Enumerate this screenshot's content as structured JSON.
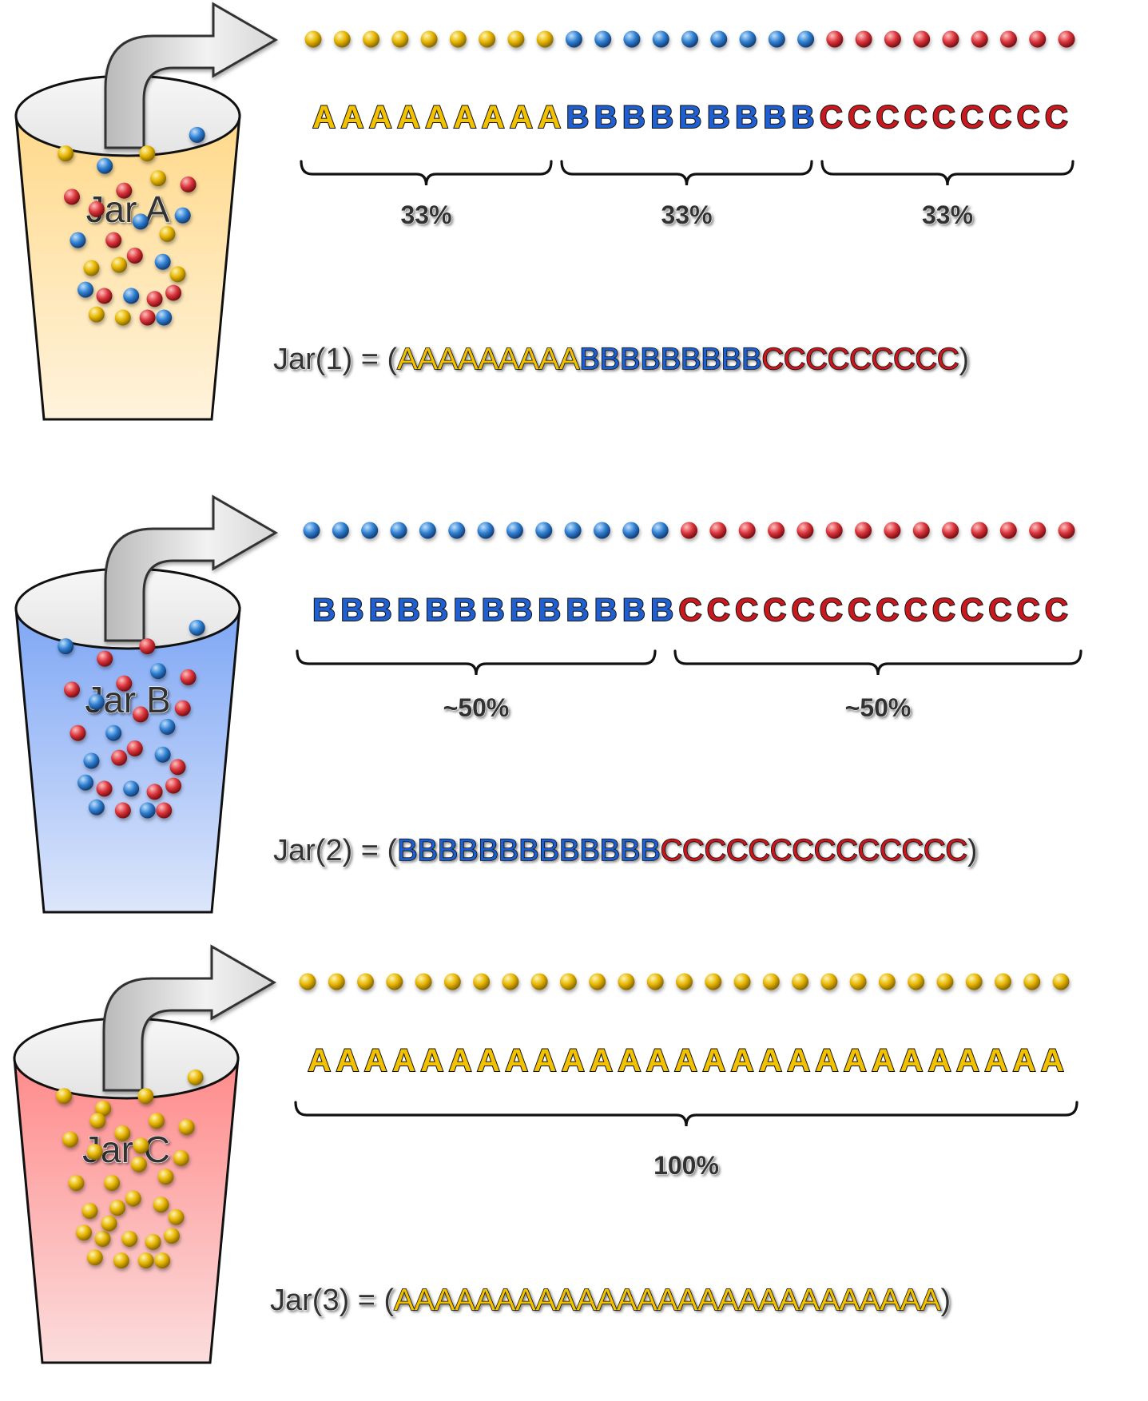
{
  "colors": {
    "A": "#F2C200",
    "B": "#1F5FD0",
    "C": "#C8191E",
    "jar_A_fill": "#FFD98A",
    "jar_B_fill": "#7EA6F5",
    "jar_C_fill": "#FF8A8A",
    "outline": "#111111",
    "label_text": "#333333"
  },
  "panels": [
    {
      "jar_label": "Jar A",
      "jar_color_key": "jar_A_fill",
      "jar_balls": "mixed-ABC",
      "beads": [
        {
          "letter": "A",
          "count": 9
        },
        {
          "letter": "B",
          "count": 9
        },
        {
          "letter": "C",
          "count": 9
        }
      ],
      "segments": [
        {
          "label": "33%",
          "letters": 9
        },
        {
          "label": "33%",
          "letters": 9
        },
        {
          "label": "33%",
          "letters": 9
        }
      ],
      "formula_prefix": "Jar(1) = (",
      "formula_parts": [
        {
          "letter": "A",
          "text": "AAAAAAAAA"
        },
        {
          "letter": "B",
          "text": "BBBBBBBBB"
        },
        {
          "letter": "C",
          "text": "CCCCCCCCC"
        }
      ],
      "formula_suffix": ")"
    },
    {
      "jar_label": "Jar B",
      "jar_color_key": "jar_B_fill",
      "jar_balls": "mixed-BC",
      "beads": [
        {
          "letter": "B",
          "count": 13
        },
        {
          "letter": "C",
          "count": 14
        }
      ],
      "segments": [
        {
          "label": "~50%",
          "letters": 13
        },
        {
          "label": "~50%",
          "letters": 14
        }
      ],
      "formula_prefix": "Jar(2) = (",
      "formula_parts": [
        {
          "letter": "B",
          "text": "BBBBBBBBBBBBB"
        },
        {
          "letter": "C",
          "text": "CCCCCCCCCCCCCC"
        }
      ],
      "formula_suffix": ")"
    },
    {
      "jar_label": "Jar C",
      "jar_color_key": "jar_C_fill",
      "jar_balls": "only-A",
      "beads": [
        {
          "letter": "A",
          "count": 27
        }
      ],
      "segments": [
        {
          "label": "100%",
          "letters": 27
        }
      ],
      "formula_prefix": "Jar(3) = (",
      "formula_parts": [
        {
          "letter": "A",
          "text": "AAAAAAAAAAAAAAAAAAAAAAAAAAA"
        }
      ],
      "formula_suffix": ")"
    }
  ]
}
